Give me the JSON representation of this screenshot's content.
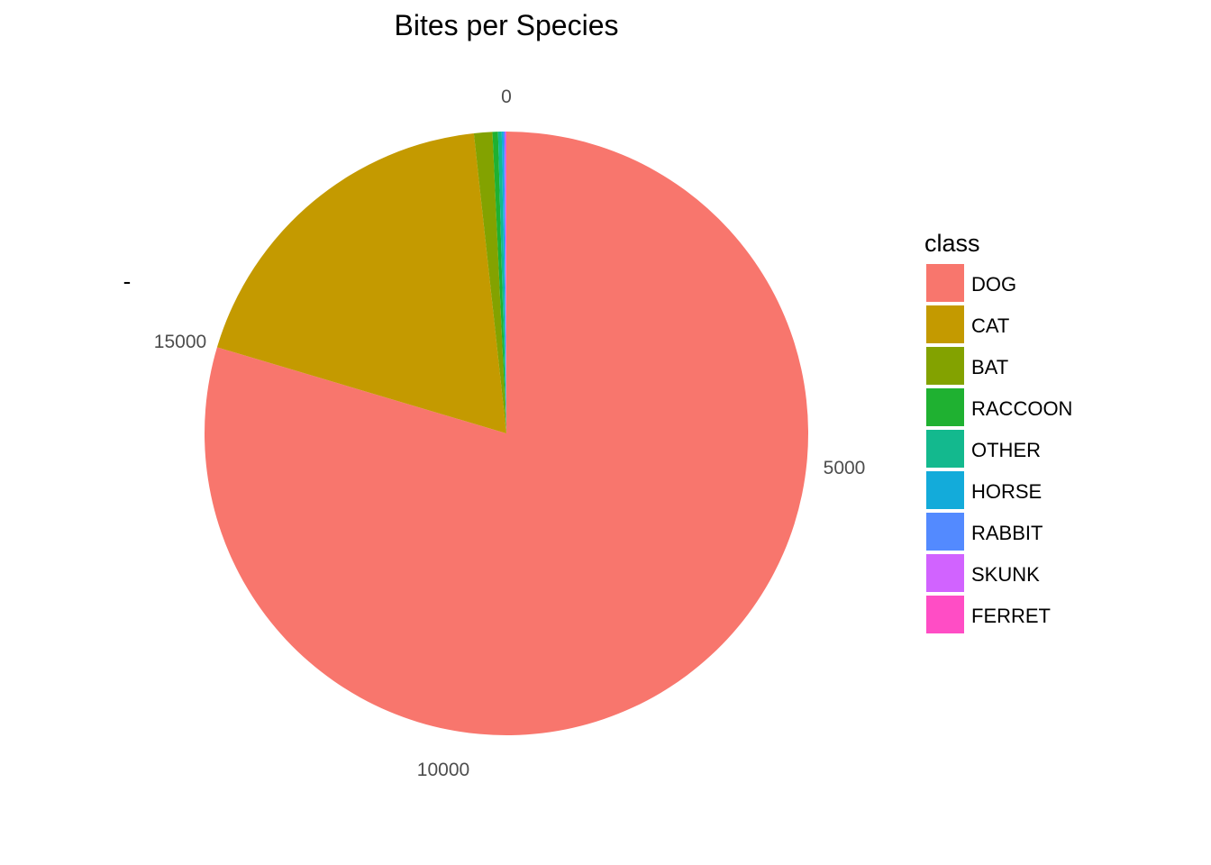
{
  "chart_data": {
    "type": "pie",
    "title": "Bites per Species",
    "ylabel": "-",
    "theta_ticks": [
      "0",
      "5000",
      "10000",
      "15000"
    ],
    "legend_title": "class",
    "legend_position": "right",
    "grid": false,
    "categories": [
      "DOG",
      "CAT",
      "BAT",
      "RACCOON",
      "OTHER",
      "HORSE",
      "RABBIT",
      "SKUNK",
      "FERRET"
    ],
    "values": [
      16200,
      3800,
      200,
      60,
      40,
      20,
      15,
      10,
      5
    ],
    "colors": [
      "#F8766D",
      "#C49A00",
      "#83A200",
      "#1FB131",
      "#13B98E",
      "#13ABDA",
      "#538AFF",
      "#D163FF",
      "#FF4DC5"
    ]
  }
}
